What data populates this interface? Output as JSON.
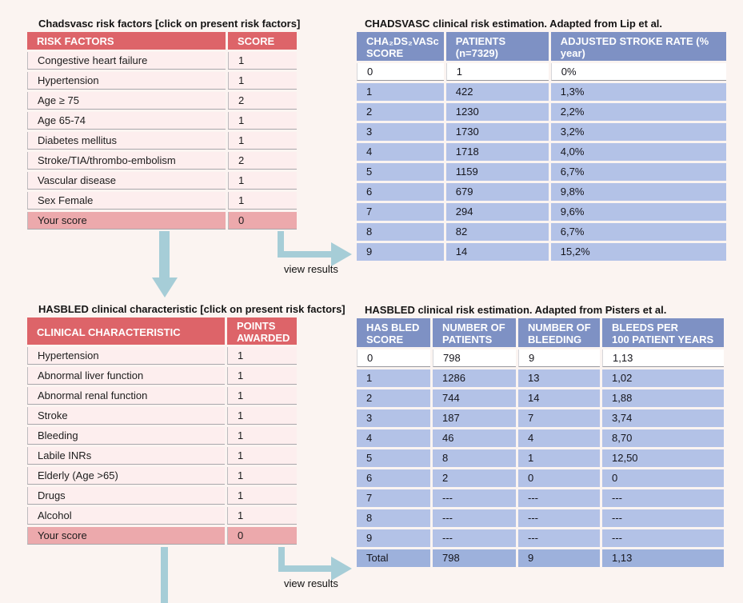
{
  "colors": {
    "page_bg": "#fbf4f1",
    "red_header": "#dd6469",
    "pink_row": "#fdeeee",
    "score_row_pink": "#eca9ac",
    "blue_header": "#7e91c4",
    "blue_row": "#b3c2e7",
    "blue_total_row": "#9db1dc",
    "highlight_row_white": "#ffffff",
    "arrow_teal": "#a6cdd7"
  },
  "chadsvasc_input": {
    "title": "Chadsvasc risk factors [click on present risk factors]",
    "columns": [
      "RISK FACTORS",
      "SCORE"
    ],
    "rows": [
      [
        "Congestive heart failure",
        "1"
      ],
      [
        "Hypertension",
        "1"
      ],
      [
        "Age ≥ 75",
        "2"
      ],
      [
        "Age 65-74",
        "1"
      ],
      [
        "Diabetes mellitus",
        "1"
      ],
      [
        "Stroke/TIA/thrombo-embolism",
        "2"
      ],
      [
        "Vascular disease",
        "1"
      ],
      [
        "Sex Female",
        "1"
      ]
    ],
    "score_rows": [
      [
        "Your score",
        "0"
      ]
    ]
  },
  "chadsvasc_results": {
    "title": "CHADSVASC clinical risk estimation. Adapted from Lip et al.",
    "columns": [
      "CHA₂DS₂VASc\nSCORE",
      "PATIENTS\n(n=7329)",
      "ADJUSTED STROKE RATE (%\nyear)"
    ],
    "rows": [
      [
        "0",
        "1",
        "0%"
      ],
      [
        "1",
        "422",
        "1,3%"
      ],
      [
        "2",
        "1230",
        "2,2%"
      ],
      [
        "3",
        "1730",
        "3,2%"
      ],
      [
        "4",
        "1718",
        "4,0%"
      ],
      [
        "5",
        "1159",
        "6,7%"
      ],
      [
        "6",
        "679",
        "9,8%"
      ],
      [
        "7",
        "294",
        "9,6%"
      ],
      [
        "8",
        "82",
        "6,7%"
      ],
      [
        "9",
        "14",
        "15,2%"
      ]
    ],
    "highlighted_row": 0
  },
  "hasbled_input": {
    "title": "HASBLED clinical characteristic [click on present risk factors]",
    "columns": [
      "CLINICAL CHARACTERISTIC",
      "POINTS\nAWARDED"
    ],
    "rows": [
      [
        "Hypertension",
        "1"
      ],
      [
        "Abnormal liver function",
        "1"
      ],
      [
        "Abnormal renal function",
        "1"
      ],
      [
        "Stroke",
        "1"
      ],
      [
        "Bleeding",
        "1"
      ],
      [
        "Labile INRs",
        "1"
      ],
      [
        "Elderly (Age >65)",
        "1"
      ],
      [
        "Drugs",
        "1"
      ],
      [
        "Alcohol",
        "1"
      ]
    ],
    "score_rows": [
      [
        "Your score",
        "0"
      ]
    ]
  },
  "hasbled_results": {
    "title": "HASBLED clinical risk estimation. Adapted from Pisters et al.",
    "columns": [
      "HAS BLED\nSCORE",
      "NUMBER OF\nPATIENTS",
      "NUMBER OF\nBLEEDING",
      "BLEEDS PER\n100 PATIENT YEARS"
    ],
    "rows": [
      [
        "0",
        "798",
        "9",
        "1,13"
      ],
      [
        "1",
        "1286",
        "13",
        "1,02"
      ],
      [
        "2",
        "744",
        "14",
        "1,88"
      ],
      [
        "3",
        "187",
        "7",
        "3,74"
      ],
      [
        "4",
        "46",
        "4",
        "8,70"
      ],
      [
        "5",
        "8",
        "1",
        "12,50"
      ],
      [
        "6",
        "2",
        "0",
        "0"
      ],
      [
        "7",
        "---",
        "---",
        "---"
      ],
      [
        "8",
        "---",
        "---",
        "---"
      ],
      [
        "9",
        "---",
        "---",
        "---"
      ]
    ],
    "total_rows": [
      [
        "Total",
        "798",
        "9",
        "1,13"
      ]
    ],
    "highlighted_row": 0
  },
  "flow": {
    "view_results_label_top": "view results",
    "view_results_label_bottom": "view results"
  }
}
